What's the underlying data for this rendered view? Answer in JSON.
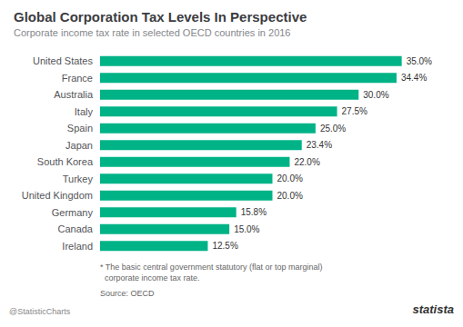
{
  "chart_data": {
    "type": "bar",
    "orientation": "horizontal",
    "title": "Global Corporation Tax Levels In Perspective",
    "subtitle": "Corporate income tax rate in selected OECD countries in 2016",
    "categories": [
      "United States",
      "France",
      "Australia",
      "Italy",
      "Spain",
      "Japan",
      "South Korea",
      "Turkey",
      "United Kingdom",
      "Germany",
      "Canada",
      "Ireland"
    ],
    "values": [
      35.0,
      34.4,
      30.0,
      27.5,
      25.0,
      23.4,
      22.0,
      20.0,
      20.0,
      15.8,
      15.0,
      12.5
    ],
    "value_labels": [
      "35.0%",
      "34.4%",
      "30.0%",
      "27.5%",
      "25.0%",
      "23.4%",
      "22.0%",
      "20.0%",
      "20.0%",
      "15.8%",
      "15.0%",
      "12.5%"
    ],
    "data_labels": true,
    "color": "#00b386",
    "xlim": [
      0,
      40
    ],
    "grid": false,
    "tick_labels": "y",
    "annotations": [
      "* The basic central government statutory (flat or top marginal)\n  corporate income tax rate.",
      "Source: OECD",
      "@StatisticCharts",
      "statista"
    ]
  }
}
